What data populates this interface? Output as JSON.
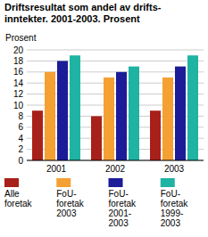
{
  "chart_data": {
    "type": "bar",
    "title": "Driftsresultat som andel av drifts-\ninntekter. 2001-2003. Prosent",
    "y_label": "Prosent",
    "categories": [
      "2001",
      "2002",
      "2003"
    ],
    "series": [
      {
        "name": "Alle\nforetak",
        "color": "#a8201a",
        "values": [
          9,
          8,
          9
        ]
      },
      {
        "name": "FoU-\nforetak\n2003",
        "color": "#f5a033",
        "values": [
          16,
          15,
          15
        ]
      },
      {
        "name": "FoU-\nforetak\n2001-\n2003",
        "color": "#1c1c99",
        "values": [
          18,
          16,
          17
        ]
      },
      {
        "name": "FoU-\nforetak\n1999-\n2003",
        "color": "#1fb3a3",
        "values": [
          19,
          17,
          19
        ]
      }
    ],
    "ylim": [
      0,
      20
    ],
    "yticks": [
      0,
      2,
      4,
      6,
      8,
      10,
      12,
      14,
      16,
      18,
      20
    ],
    "grid": true,
    "legend": "bottom"
  }
}
